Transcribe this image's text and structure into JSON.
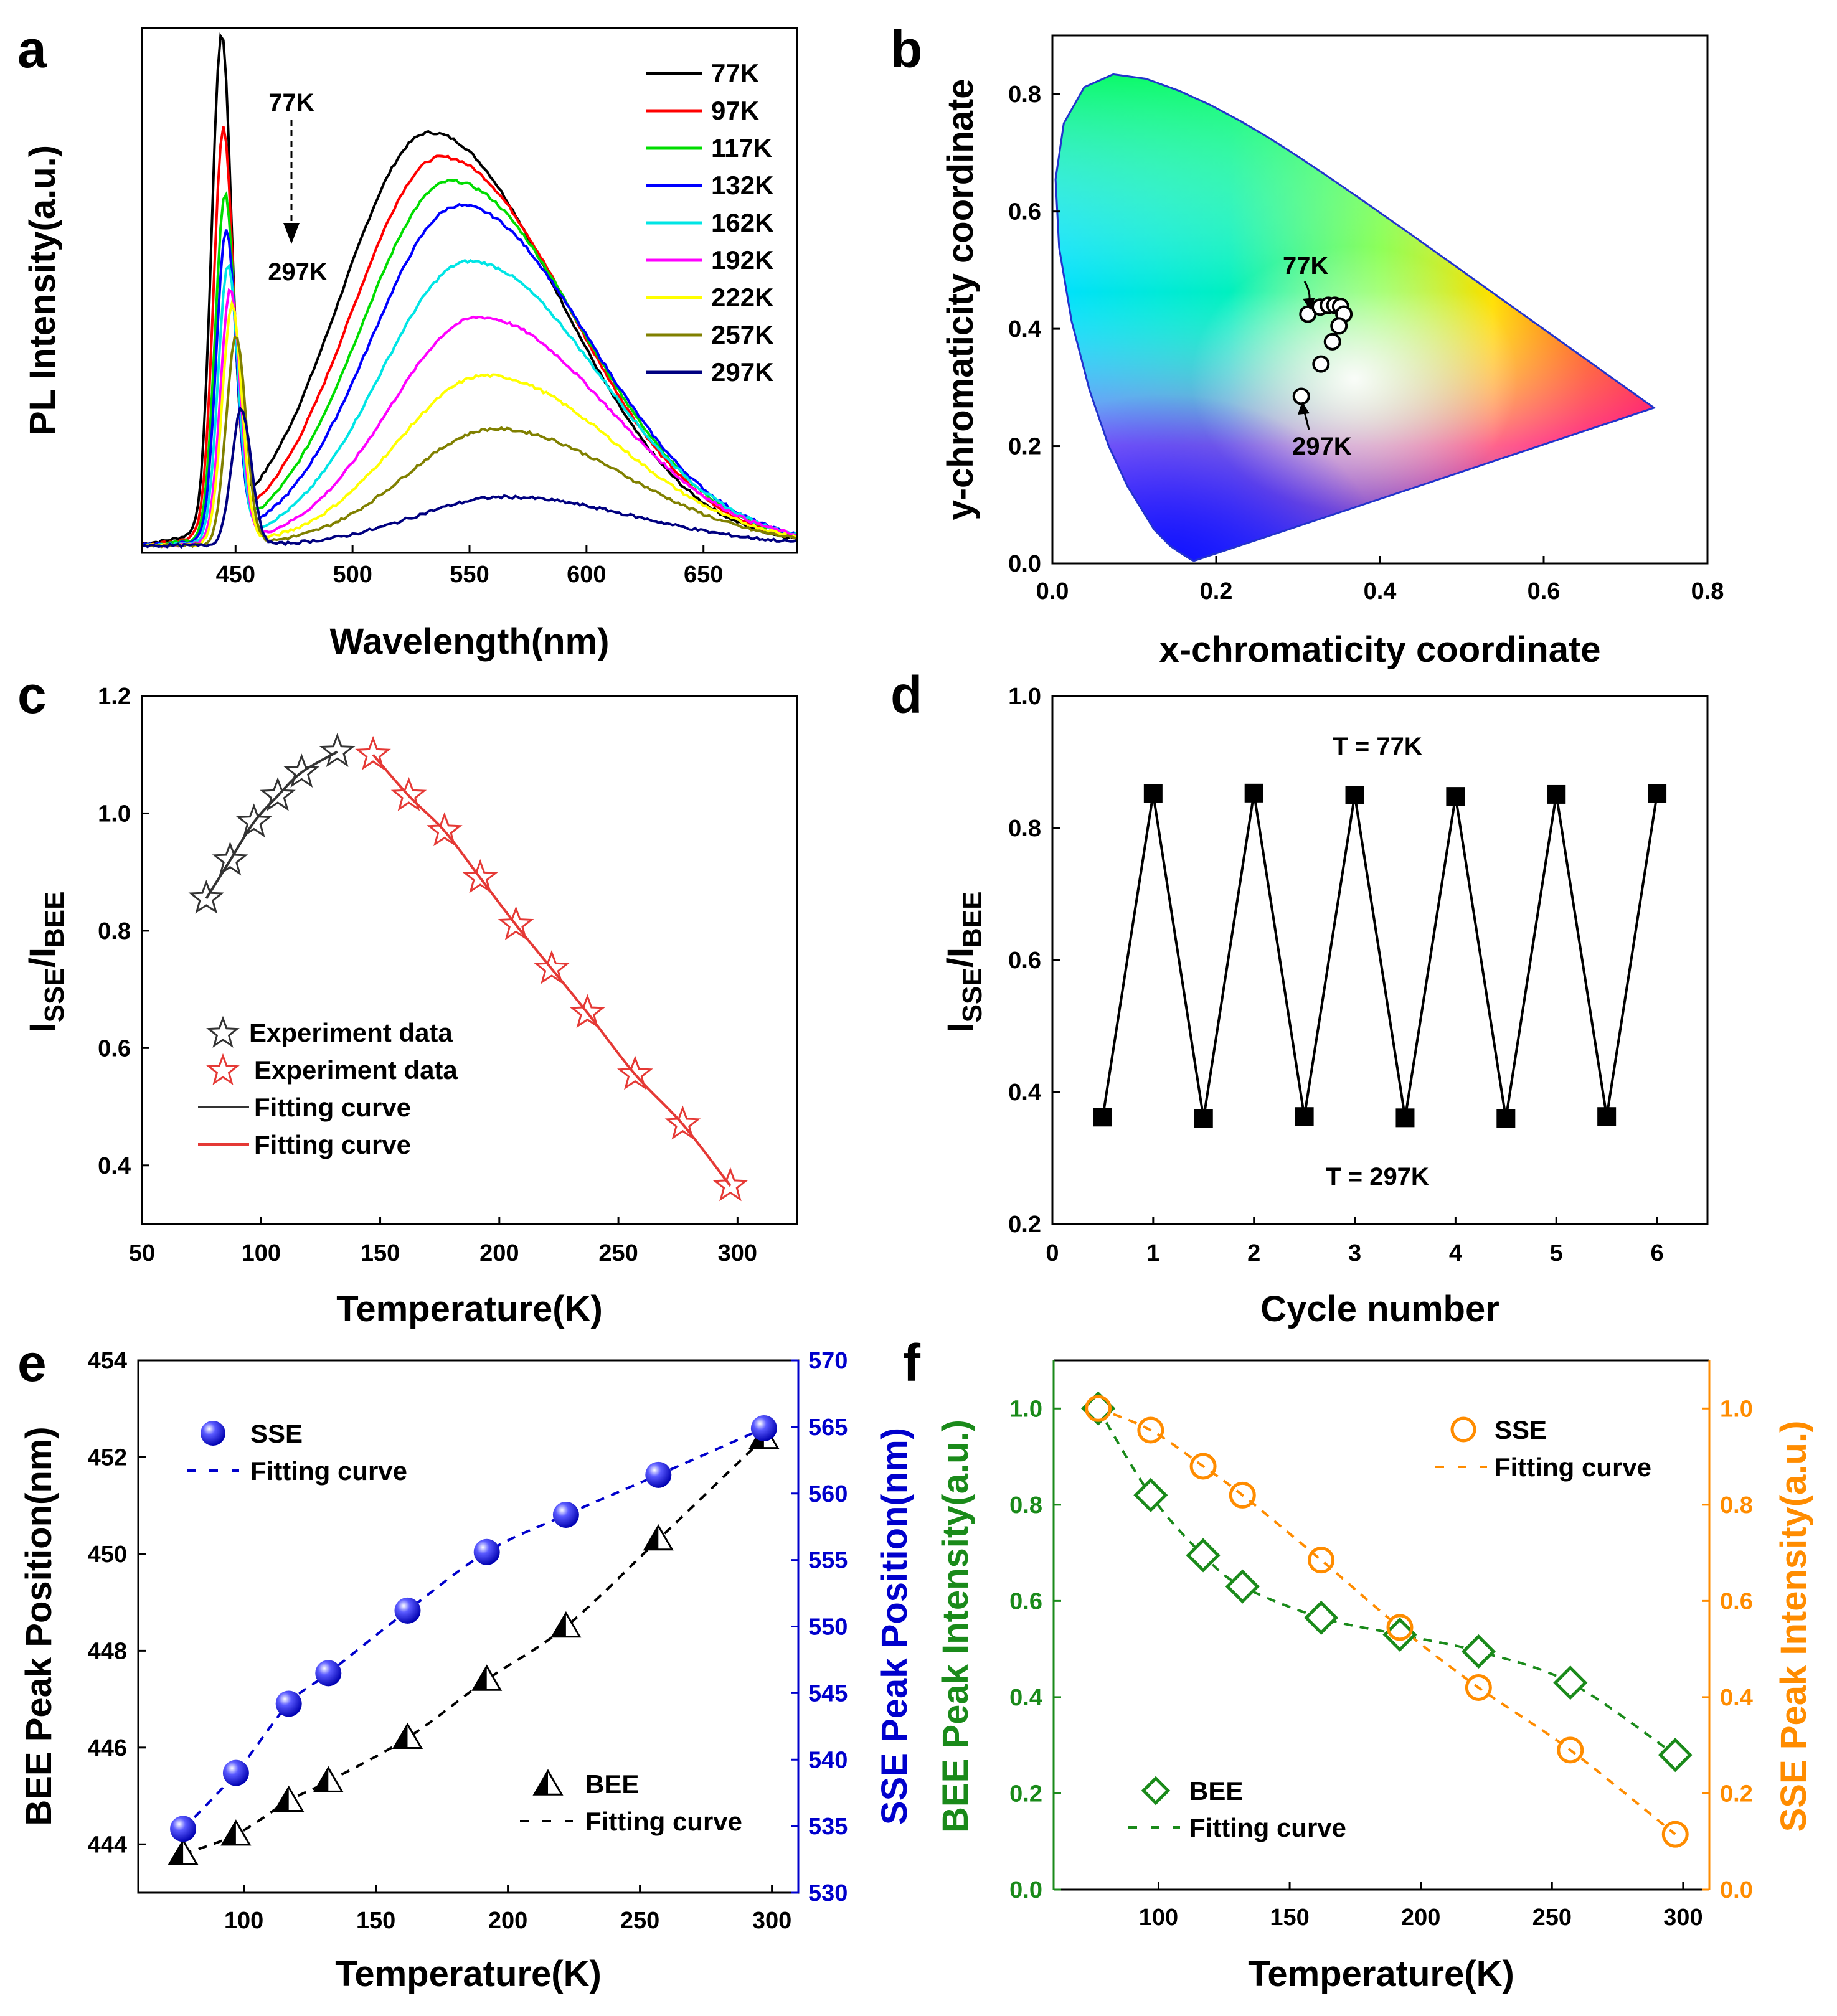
{
  "figure": {
    "panels": [
      "a",
      "b",
      "c",
      "d",
      "e",
      "f"
    ]
  },
  "chart_data": [
    {
      "id": "a",
      "type": "line",
      "xlabel": "Wavelength(nm)",
      "ylabel": "PL Intensity(a.u.)",
      "xlim": [
        410,
        690
      ],
      "ylim": [
        0,
        1.08
      ],
      "xticks": [
        450,
        500,
        550,
        600,
        650
      ],
      "legend_position": "top-right",
      "annotation_top": "77K",
      "annotation_bottom": "297K",
      "series": [
        {
          "name": "77K",
          "color": "#000000",
          "bee_peak": 444.0,
          "bee_amp": 1.0,
          "sse_peak": 533,
          "sse_amp": 0.85
        },
        {
          "name": "97K",
          "color": "#ff0000",
          "bee_peak": 444.8,
          "bee_amp": 0.82,
          "sse_peak": 538,
          "sse_amp": 0.8
        },
        {
          "name": "117K",
          "color": "#00dd00",
          "bee_peak": 445.5,
          "bee_amp": 0.695,
          "sse_peak": 542,
          "sse_amp": 0.75
        },
        {
          "name": "132K",
          "color": "#0000ff",
          "bee_peak": 446.0,
          "bee_amp": 0.63,
          "sse_peak": 546,
          "sse_amp": 0.7
        },
        {
          "name": "162K",
          "color": "#00e5e5",
          "bee_peak": 446.8,
          "bee_amp": 0.565,
          "sse_peak": 550,
          "sse_amp": 0.585
        },
        {
          "name": "192K",
          "color": "#ff00ff",
          "bee_peak": 447.8,
          "bee_amp": 0.52,
          "sse_peak": 554,
          "sse_amp": 0.47
        },
        {
          "name": "222K",
          "color": "#ffff00",
          "bee_peak": 448.5,
          "bee_amp": 0.49,
          "sse_peak": 557,
          "sse_amp": 0.35
        },
        {
          "name": "257K",
          "color": "#808000",
          "bee_peak": 450.2,
          "bee_amp": 0.43,
          "sse_peak": 561,
          "sse_amp": 0.24
        },
        {
          "name": "297K",
          "color": "#000080",
          "bee_peak": 452.5,
          "bee_amp": 0.28,
          "sse_peak": 565,
          "sse_amp": 0.1
        }
      ]
    },
    {
      "id": "b",
      "type": "scatter",
      "xlabel": "x-chromaticity coordinate",
      "ylabel": "y-chromaticity coordinate",
      "xlim": [
        0,
        0.8
      ],
      "ylim": [
        0,
        0.9
      ],
      "xticks": [
        0.0,
        0.2,
        0.4,
        0.6,
        0.8
      ],
      "yticks": [
        0.0,
        0.2,
        0.4,
        0.6,
        0.8
      ],
      "annotation_top": "77K",
      "annotation_bottom": "297K",
      "points": {
        "x": [
          0.312,
          0.327,
          0.337,
          0.345,
          0.352,
          0.356,
          0.35,
          0.342,
          0.328,
          0.304
        ],
        "y": [
          0.425,
          0.437,
          0.44,
          0.44,
          0.438,
          0.425,
          0.405,
          0.378,
          0.34,
          0.285
        ]
      }
    },
    {
      "id": "c",
      "type": "scatter",
      "xlabel": "Temperature(K)",
      "ylabel": "ISSE/IBEE",
      "ylabel_main_1": "I",
      "ylabel_sub_1": "SSE",
      "ylabel_main_2": "/I",
      "ylabel_sub_2": "BEE",
      "xlim": [
        50,
        325
      ],
      "ylim": [
        0.3,
        1.2
      ],
      "xticks": [
        50,
        100,
        150,
        200,
        250,
        300
      ],
      "yticks": [
        0.4,
        0.6,
        0.8,
        1.0,
        1.2
      ],
      "series": [
        {
          "name": "Experiment data",
          "color": "#333333",
          "marker": "star",
          "x": [
            77,
            87,
            97,
            107,
            117,
            132
          ],
          "y": [
            0.855,
            0.92,
            0.985,
            1.03,
            1.07,
            1.105
          ]
        },
        {
          "name": "Experiment data",
          "color": "#e53935",
          "marker": "star",
          "x": [
            147,
            162,
            177,
            192,
            207,
            222,
            237,
            257,
            277,
            297
          ],
          "y": [
            1.1,
            1.03,
            0.97,
            0.89,
            0.81,
            0.735,
            0.66,
            0.555,
            0.47,
            0.365
          ]
        },
        {
          "name": "Fitting curve",
          "color": "#333333",
          "marker": "line",
          "x": [
            77,
            87,
            97,
            107,
            117,
            132
          ],
          "y": [
            0.855,
            0.92,
            0.985,
            1.03,
            1.07,
            1.105
          ]
        },
        {
          "name": "Fitting curve",
          "color": "#e53935",
          "marker": "line",
          "x": [
            147,
            162,
            177,
            192,
            207,
            222,
            237,
            257,
            277,
            297
          ],
          "y": [
            1.1,
            1.03,
            0.97,
            0.89,
            0.81,
            0.735,
            0.66,
            0.555,
            0.47,
            0.365
          ]
        }
      ]
    },
    {
      "id": "d",
      "type": "line",
      "xlabel": "Cycle number",
      "ylabel": "ISSE/IBEE",
      "ylabel_main_1": "I",
      "ylabel_sub_1": "SSE",
      "ylabel_main_2": "/I",
      "ylabel_sub_2": "BEE",
      "xlim": [
        0,
        6.5
      ],
      "ylim": [
        0.2,
        1.0
      ],
      "xticks": [
        0,
        1,
        2,
        3,
        4,
        5,
        6
      ],
      "yticks": [
        0.2,
        0.4,
        0.6,
        0.8,
        1.0
      ],
      "annotation_top": "T = 77K",
      "annotation_bottom": "T = 297K",
      "x": [
        0.5,
        1,
        1.5,
        2,
        2.5,
        3,
        3.5,
        4,
        4.5,
        5,
        5.5,
        6
      ],
      "y": [
        0.362,
        0.852,
        0.36,
        0.853,
        0.363,
        0.85,
        0.361,
        0.848,
        0.36,
        0.851,
        0.363,
        0.852
      ]
    },
    {
      "id": "e",
      "type": "scatter",
      "xlabel": "Temperature(K)",
      "ylabel_left": "BEE Peak Position(nm)",
      "ylabel_right": "SSE Peak Position(nm)",
      "xlim": [
        60,
        310
      ],
      "ylim_left": [
        443,
        454
      ],
      "ylim_right": [
        530,
        570
      ],
      "xticks": [
        100,
        150,
        200,
        250,
        300
      ],
      "yticks_left": [
        444,
        446,
        448,
        450,
        452,
        454
      ],
      "yticks_right": [
        530,
        535,
        540,
        545,
        550,
        555,
        560,
        565,
        570
      ],
      "right_axis_color": "#0000cc",
      "sse_label": "SSE",
      "bee_label": "BEE",
      "fit_label": "Fitting curve",
      "temperature": [
        77,
        97,
        117,
        132,
        162,
        192,
        222,
        257,
        297
      ],
      "bee_peak": [
        443.8,
        444.2,
        444.9,
        445.3,
        446.2,
        447.4,
        448.5,
        450.3,
        452.4
      ],
      "sse_peak": [
        534.8,
        539.0,
        544.2,
        546.5,
        551.2,
        555.6,
        558.4,
        561.4,
        564.9
      ]
    },
    {
      "id": "f",
      "type": "scatter",
      "xlabel": "Temperature(K)",
      "ylabel_left": "BEE Peak Intensity(a.u.)",
      "ylabel_right": "SSE Peak Intensity(a.u.)",
      "xlim": [
        60,
        310
      ],
      "ylim": [
        0.0,
        1.1
      ],
      "xticks": [
        100,
        150,
        200,
        250,
        300
      ],
      "yticks": [
        0.0,
        0.2,
        0.4,
        0.6,
        0.8,
        1.0
      ],
      "left_axis_color": "#1a8a1a",
      "right_axis_color": "#ff8c00",
      "sse_label": "SSE",
      "bee_label": "BEE",
      "fit_label": "Fitting curve",
      "temperature": [
        77,
        97,
        117,
        132,
        162,
        192,
        222,
        257,
        297
      ],
      "bee_intensity": [
        1.0,
        0.82,
        0.695,
        0.63,
        0.565,
        0.53,
        0.495,
        0.43,
        0.28
      ],
      "sse_intensity": [
        1.0,
        0.955,
        0.88,
        0.82,
        0.685,
        0.545,
        0.42,
        0.29,
        0.115
      ]
    }
  ]
}
